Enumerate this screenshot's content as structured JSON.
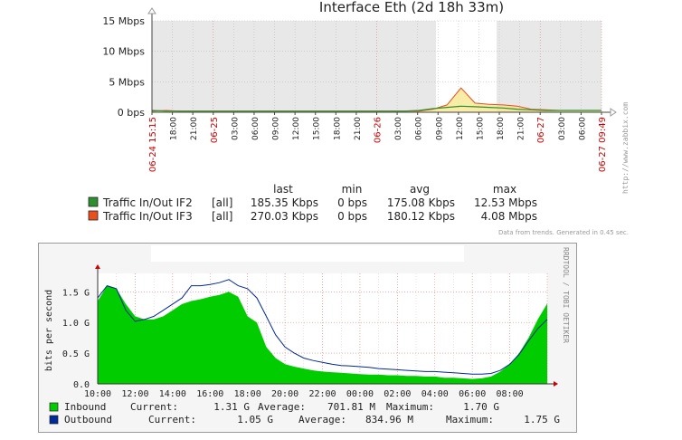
{
  "chart_data": [
    {
      "type": "area",
      "title": "Interface Eth (2d 18h 33m)",
      "y_unit": "Mbps",
      "ylim": [
        0,
        15
      ],
      "y_ticks": [
        "15 Mbps",
        "10 Mbps",
        "5 Mbps",
        "0 bps"
      ],
      "x_tick_labels": [
        {
          "label": "06-24 15:15",
          "red": true
        },
        {
          "label": "18:00",
          "red": false
        },
        {
          "label": "21:00",
          "red": false
        },
        {
          "label": "06-25",
          "red": true
        },
        {
          "label": "03:00",
          "red": false
        },
        {
          "label": "06:00",
          "red": false
        },
        {
          "label": "09:00",
          "red": false
        },
        {
          "label": "12:00",
          "red": false
        },
        {
          "label": "15:00",
          "red": false
        },
        {
          "label": "18:00",
          "red": false
        },
        {
          "label": "21:00",
          "red": false
        },
        {
          "label": "06-26",
          "red": true
        },
        {
          "label": "03:00",
          "red": false
        },
        {
          "label": "06:00",
          "red": false
        },
        {
          "label": "09:00",
          "red": false
        },
        {
          "label": "12:00",
          "red": false
        },
        {
          "label": "15:00",
          "red": false
        },
        {
          "label": "18:00",
          "red": false
        },
        {
          "label": "21:00",
          "red": false
        },
        {
          "label": "06-27",
          "red": true
        },
        {
          "label": "03:00",
          "red": false
        },
        {
          "label": "06:00",
          "red": false
        },
        {
          "label": "06-27 09:49",
          "red": true
        }
      ],
      "legend_header": {
        "last": "last",
        "min": "min",
        "avg": "avg",
        "max": "max"
      },
      "series": [
        {
          "name": "Traffic In/Out IF2",
          "agg": "[all]",
          "last": "185.35 Kbps",
          "min": "0 bps",
          "avg": "175.08 Kbps",
          "max": "12.53 Mbps",
          "color": "#2f8f2f",
          "values_mbps": [
            0.3,
            0.2,
            0.2,
            0.2,
            0.2,
            0.2,
            0.2,
            0.2,
            0.2,
            0.2,
            0.2,
            0.2,
            0.2,
            0.2,
            0.2,
            0.2,
            0.2,
            0.2,
            0.2,
            0.3,
            0.6,
            0.8,
            1.0,
            0.9,
            0.8,
            0.7,
            0.5,
            0.4,
            0.3,
            0.3,
            0.3,
            0.3,
            0.3
          ]
        },
        {
          "name": "Traffic In/Out IF3",
          "agg": "[all]",
          "last": "270.03 Kbps",
          "min": "0 bps",
          "avg": "180.12 Kbps",
          "max": "4.08 Mbps",
          "color": "#e8501e",
          "values_mbps": [
            0.2,
            0.3,
            0.2,
            0.2,
            0.2,
            0.2,
            0.2,
            0.2,
            0.2,
            0.2,
            0.2,
            0.2,
            0.2,
            0.2,
            0.2,
            0.2,
            0.2,
            0.2,
            0.2,
            0.2,
            0.5,
            1.2,
            4.0,
            1.5,
            1.3,
            1.2,
            1.0,
            0.5,
            0.4,
            0.3,
            0.3,
            0.3,
            0.3
          ]
        }
      ],
      "side_text": "http://www.zabbix.com",
      "footer": "Data from trends. Generated in 0.45 sec."
    },
    {
      "type": "area",
      "ylabel": "bits per second",
      "ylim": [
        0,
        1.8
      ],
      "y_ticks": [
        "1.5 G",
        "1.0 G",
        "0.5 G",
        "0.0"
      ],
      "x_ticks": [
        "10:00",
        "12:00",
        "14:00",
        "16:00",
        "18:00",
        "20:00",
        "22:00",
        "00:00",
        "02:00",
        "04:00",
        "06:00",
        "08:00"
      ],
      "x_hours": [
        10,
        34
      ],
      "side_text": "RRDTOOL / TOBI OETIKER",
      "series": [
        {
          "name": "Inbound",
          "color": "#00cc00",
          "current": "1.31 G",
          "average": "701.81 M",
          "maximum": "1.70 G",
          "x": [
            10,
            10.5,
            11,
            11.5,
            12,
            12.5,
            13,
            13.5,
            14,
            14.5,
            15,
            15.5,
            16,
            16.5,
            17,
            17.5,
            18,
            18.5,
            19,
            19.5,
            20,
            20.5,
            21,
            21.5,
            22,
            22.5,
            23,
            23.5,
            24,
            24.5,
            25,
            25.5,
            26,
            26.5,
            27,
            27.5,
            28,
            28.5,
            29,
            29.5,
            30,
            30.5,
            31,
            31.5,
            32,
            32.5,
            33,
            33.5,
            34
          ],
          "values": [
            1.35,
            1.6,
            1.55,
            1.3,
            1.1,
            1.05,
            1.05,
            1.1,
            1.2,
            1.3,
            1.35,
            1.38,
            1.42,
            1.45,
            1.5,
            1.42,
            1.1,
            1.0,
            0.6,
            0.42,
            0.32,
            0.28,
            0.25,
            0.22,
            0.2,
            0.19,
            0.18,
            0.17,
            0.16,
            0.15,
            0.15,
            0.14,
            0.14,
            0.13,
            0.13,
            0.12,
            0.12,
            0.1,
            0.1,
            0.09,
            0.08,
            0.09,
            0.12,
            0.2,
            0.32,
            0.5,
            0.75,
            1.05,
            1.31
          ]
        },
        {
          "name": "Outbound",
          "color": "#002a97",
          "current": "1.05 G",
          "average": "834.96 M",
          "maximum": "1.75 G",
          "x": [
            10,
            10.5,
            11,
            11.5,
            12,
            12.5,
            13,
            13.5,
            14,
            14.5,
            15,
            15.5,
            16,
            16.5,
            17,
            17.5,
            18,
            18.5,
            19,
            19.5,
            20,
            20.5,
            21,
            21.5,
            22,
            22.5,
            23,
            23.5,
            24,
            24.5,
            25,
            25.5,
            26,
            26.5,
            27,
            27.5,
            28,
            28.5,
            29,
            29.5,
            30,
            30.5,
            31,
            31.5,
            32,
            32.5,
            33,
            33.5,
            34
          ],
          "values": [
            1.4,
            1.6,
            1.55,
            1.2,
            1.02,
            1.05,
            1.1,
            1.2,
            1.3,
            1.4,
            1.6,
            1.6,
            1.62,
            1.65,
            1.7,
            1.6,
            1.55,
            1.4,
            1.1,
            0.8,
            0.6,
            0.5,
            0.42,
            0.38,
            0.35,
            0.32,
            0.3,
            0.29,
            0.28,
            0.27,
            0.25,
            0.24,
            0.23,
            0.22,
            0.21,
            0.2,
            0.2,
            0.19,
            0.18,
            0.17,
            0.16,
            0.16,
            0.17,
            0.22,
            0.32,
            0.48,
            0.7,
            0.9,
            1.05
          ]
        }
      ],
      "legend_labels": {
        "current": "Current:",
        "average": "Average:",
        "maximum": "Maximum:"
      }
    }
  ]
}
